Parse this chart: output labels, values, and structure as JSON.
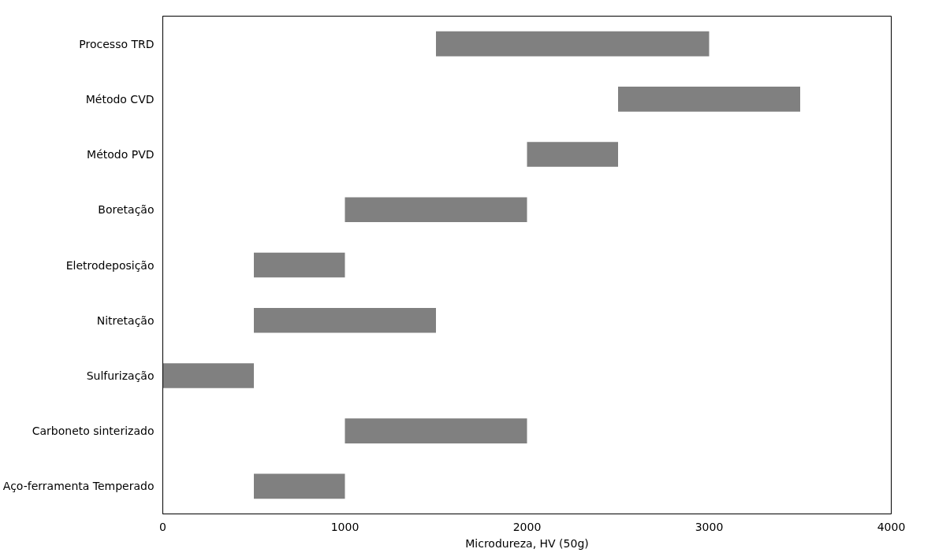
{
  "chart_data": {
    "type": "bar",
    "orientation": "horizontal",
    "xlabel": "Microdureza, HV (50g)",
    "categories": [
      "Processo TRD",
      "Método CVD",
      "Método PVD",
      "Boretação",
      "Eletrodeposição",
      "Nitretação",
      "Sulfurização",
      "Carboneto sinterizado",
      "Aço-ferramenta Temperado"
    ],
    "base": [
      1500,
      2500,
      2000,
      1000,
      500,
      500,
      0,
      1000,
      500
    ],
    "values": [
      1500,
      1000,
      500,
      1000,
      500,
      1000,
      500,
      1000,
      500
    ],
    "color": "#808080",
    "xlim": [
      0,
      4000
    ],
    "xticks": [
      0,
      1000,
      2000,
      3000,
      4000
    ],
    "grid": false
  }
}
